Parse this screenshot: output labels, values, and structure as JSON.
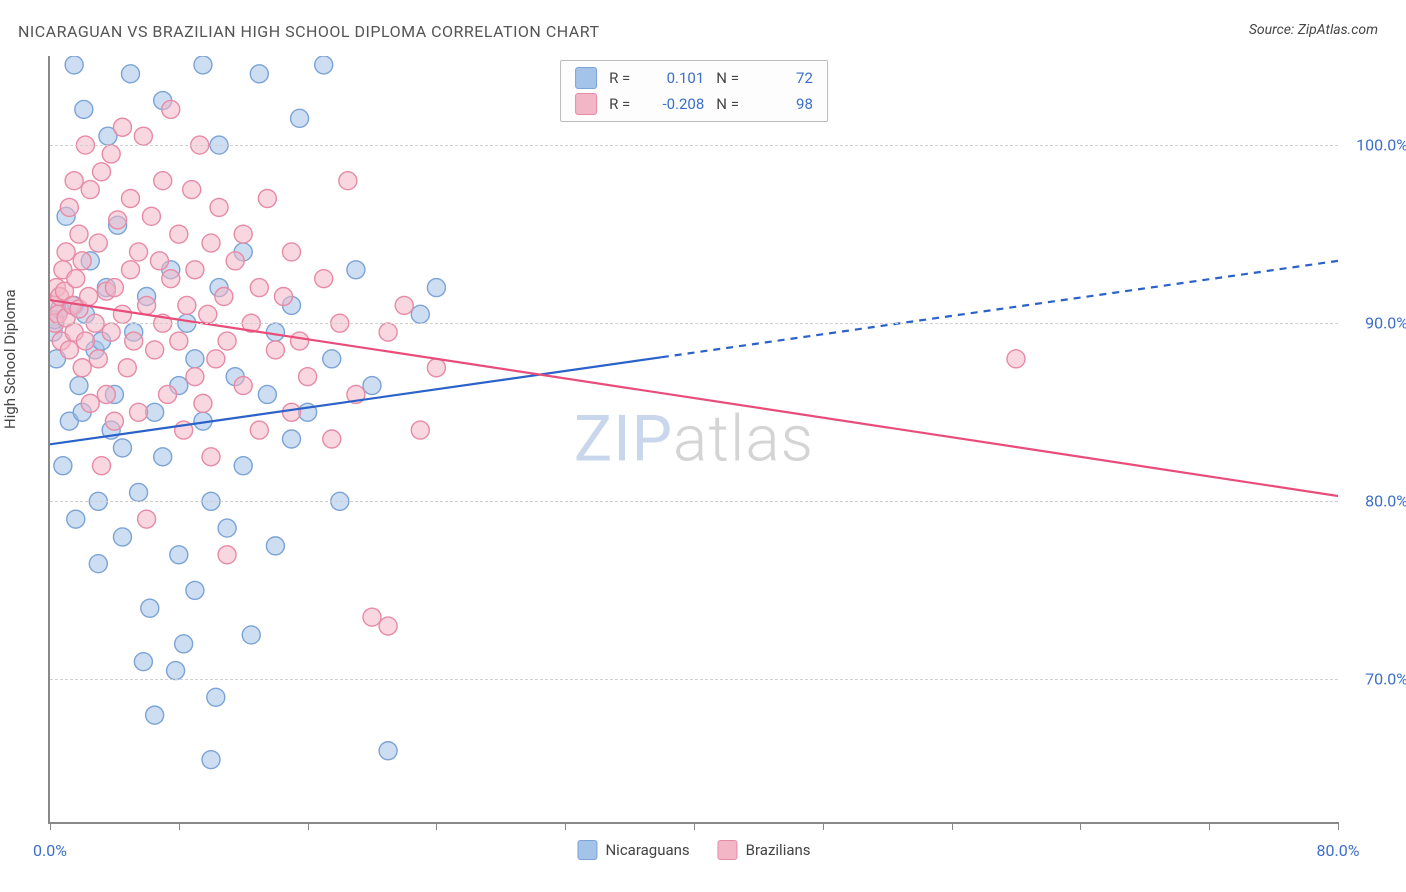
{
  "title": "NICARAGUAN VS BRAZILIAN HIGH SCHOOL DIPLOMA CORRELATION CHART",
  "source_label": "Source: ZipAtlas.com",
  "y_axis_label": "High School Diploma",
  "watermark": {
    "part1": "ZIP",
    "part2": "atlas"
  },
  "chart": {
    "type": "scatter",
    "xlim": [
      0,
      80
    ],
    "ylim": [
      62,
      105
    ],
    "x_ticks": [
      0,
      8,
      16,
      24,
      32,
      40,
      48,
      56,
      64,
      72,
      80
    ],
    "x_tick_labels": {
      "0": "0.0%",
      "80": "80.0%"
    },
    "y_gridlines": [
      70,
      80,
      90,
      100
    ],
    "y_tick_labels": {
      "70": "70.0%",
      "80": "80.0%",
      "90": "90.0%",
      "100": "100.0%"
    },
    "grid_color": "#d0d0d0",
    "axis_color": "#888888",
    "background_color": "#ffffff",
    "marker_radius": 9,
    "marker_stroke_width": 1.4,
    "series": [
      {
        "name": "Nicaraguans",
        "fill_color": "#a4c3e8",
        "stroke_color": "#7ba3d6",
        "fill_opacity": 0.55,
        "R": "0.101",
        "N": "72",
        "trend": {
          "x1": 0,
          "y1": 83.2,
          "x2": 80,
          "y2": 93.5,
          "solid_until_x": 38,
          "color": "#2a62c9",
          "width": 2.2
        },
        "points": [
          [
            0.2,
            89.5
          ],
          [
            0.3,
            90.2
          ],
          [
            0.4,
            88.0
          ],
          [
            0.6,
            90.8
          ],
          [
            0.8,
            82.0
          ],
          [
            1.0,
            96.0
          ],
          [
            1.2,
            84.5
          ],
          [
            1.5,
            104.5
          ],
          [
            1.5,
            91.0
          ],
          [
            1.6,
            79.0
          ],
          [
            1.8,
            86.5
          ],
          [
            2.0,
            85.0
          ],
          [
            2.1,
            102.0
          ],
          [
            2.2,
            90.5
          ],
          [
            2.5,
            93.5
          ],
          [
            2.8,
            88.5
          ],
          [
            3.0,
            80.0
          ],
          [
            3.0,
            76.5
          ],
          [
            3.2,
            89.0
          ],
          [
            3.5,
            92.0
          ],
          [
            3.6,
            100.5
          ],
          [
            3.8,
            84.0
          ],
          [
            4.0,
            86.0
          ],
          [
            4.2,
            95.5
          ],
          [
            4.5,
            83.0
          ],
          [
            4.5,
            78.0
          ],
          [
            5.0,
            104.0
          ],
          [
            5.2,
            89.5
          ],
          [
            5.5,
            80.5
          ],
          [
            5.8,
            71.0
          ],
          [
            6.0,
            91.5
          ],
          [
            6.2,
            74.0
          ],
          [
            6.5,
            85.0
          ],
          [
            6.5,
            68.0
          ],
          [
            7.0,
            102.5
          ],
          [
            7.0,
            82.5
          ],
          [
            7.5,
            93.0
          ],
          [
            7.8,
            70.5
          ],
          [
            8.0,
            86.5
          ],
          [
            8.0,
            77.0
          ],
          [
            8.3,
            72.0
          ],
          [
            8.5,
            90.0
          ],
          [
            9.0,
            88.0
          ],
          [
            9.0,
            75.0
          ],
          [
            9.5,
            84.5
          ],
          [
            9.5,
            104.5
          ],
          [
            10.0,
            80.0
          ],
          [
            10.0,
            65.5
          ],
          [
            10.3,
            69.0
          ],
          [
            10.5,
            92.0
          ],
          [
            10.5,
            100.0
          ],
          [
            11.0,
            78.5
          ],
          [
            11.5,
            87.0
          ],
          [
            12.0,
            82.0
          ],
          [
            12.0,
            94.0
          ],
          [
            12.5,
            72.5
          ],
          [
            13.0,
            104.0
          ],
          [
            13.5,
            86.0
          ],
          [
            14.0,
            89.5
          ],
          [
            14.0,
            77.5
          ],
          [
            15.0,
            91.0
          ],
          [
            15.0,
            83.5
          ],
          [
            15.5,
            101.5
          ],
          [
            16.0,
            85.0
          ],
          [
            17.0,
            104.5
          ],
          [
            17.5,
            88.0
          ],
          [
            18.0,
            80.0
          ],
          [
            19.0,
            93.0
          ],
          [
            20.0,
            86.5
          ],
          [
            21.0,
            66.0
          ],
          [
            23.0,
            90.5
          ],
          [
            24.0,
            92.0
          ]
        ]
      },
      {
        "name": "Brazilians",
        "fill_color": "#f2b6c6",
        "stroke_color": "#e78aa5",
        "fill_opacity": 0.55,
        "R": "-0.208",
        "N": "98",
        "trend": {
          "x1": 0,
          "y1": 91.3,
          "x2": 80,
          "y2": 80.3,
          "solid_until_x": 80,
          "color": "#e84d7a",
          "width": 2.2
        },
        "points": [
          [
            0.2,
            91.0
          ],
          [
            0.3,
            90.0
          ],
          [
            0.4,
            92.0
          ],
          [
            0.5,
            90.5
          ],
          [
            0.6,
            91.5
          ],
          [
            0.7,
            89.0
          ],
          [
            0.8,
            93.0
          ],
          [
            0.9,
            91.8
          ],
          [
            1.0,
            90.3
          ],
          [
            1.0,
            94.0
          ],
          [
            1.2,
            88.5
          ],
          [
            1.2,
            96.5
          ],
          [
            1.4,
            91.0
          ],
          [
            1.5,
            89.5
          ],
          [
            1.5,
            98.0
          ],
          [
            1.6,
            92.5
          ],
          [
            1.8,
            90.8
          ],
          [
            1.8,
            95.0
          ],
          [
            2.0,
            87.5
          ],
          [
            2.0,
            93.5
          ],
          [
            2.2,
            100.0
          ],
          [
            2.2,
            89.0
          ],
          [
            2.4,
            91.5
          ],
          [
            2.5,
            97.5
          ],
          [
            2.5,
            85.5
          ],
          [
            2.8,
            90.0
          ],
          [
            3.0,
            94.5
          ],
          [
            3.0,
            88.0
          ],
          [
            3.2,
            98.5
          ],
          [
            3.2,
            82.0
          ],
          [
            3.5,
            91.8
          ],
          [
            3.5,
            86.0
          ],
          [
            3.8,
            99.5
          ],
          [
            3.8,
            89.5
          ],
          [
            4.0,
            92.0
          ],
          [
            4.0,
            84.5
          ],
          [
            4.2,
            95.8
          ],
          [
            4.5,
            90.5
          ],
          [
            4.5,
            101.0
          ],
          [
            4.8,
            87.5
          ],
          [
            5.0,
            93.0
          ],
          [
            5.0,
            97.0
          ],
          [
            5.2,
            89.0
          ],
          [
            5.5,
            85.0
          ],
          [
            5.5,
            94.0
          ],
          [
            5.8,
            100.5
          ],
          [
            6.0,
            91.0
          ],
          [
            6.0,
            79.0
          ],
          [
            6.3,
            96.0
          ],
          [
            6.5,
            88.5
          ],
          [
            6.8,
            93.5
          ],
          [
            7.0,
            90.0
          ],
          [
            7.0,
            98.0
          ],
          [
            7.3,
            86.0
          ],
          [
            7.5,
            92.5
          ],
          [
            7.5,
            102.0
          ],
          [
            8.0,
            89.0
          ],
          [
            8.0,
            95.0
          ],
          [
            8.3,
            84.0
          ],
          [
            8.5,
            91.0
          ],
          [
            8.8,
            97.5
          ],
          [
            9.0,
            87.0
          ],
          [
            9.0,
            93.0
          ],
          [
            9.3,
            100.0
          ],
          [
            9.5,
            85.5
          ],
          [
            9.8,
            90.5
          ],
          [
            10.0,
            94.5
          ],
          [
            10.0,
            82.5
          ],
          [
            10.3,
            88.0
          ],
          [
            10.5,
            96.5
          ],
          [
            10.8,
            91.5
          ],
          [
            11.0,
            77.0
          ],
          [
            11.0,
            89.0
          ],
          [
            11.5,
            93.5
          ],
          [
            12.0,
            86.5
          ],
          [
            12.0,
            95.0
          ],
          [
            12.5,
            90.0
          ],
          [
            13.0,
            84.0
          ],
          [
            13.0,
            92.0
          ],
          [
            13.5,
            97.0
          ],
          [
            14.0,
            88.5
          ],
          [
            14.5,
            91.5
          ],
          [
            15.0,
            85.0
          ],
          [
            15.0,
            94.0
          ],
          [
            15.5,
            89.0
          ],
          [
            16.0,
            87.0
          ],
          [
            17.0,
            92.5
          ],
          [
            17.5,
            83.5
          ],
          [
            18.0,
            90.0
          ],
          [
            18.5,
            98.0
          ],
          [
            19.0,
            86.0
          ],
          [
            20.0,
            73.5
          ],
          [
            21.0,
            89.5
          ],
          [
            21.0,
            73.0
          ],
          [
            22.0,
            91.0
          ],
          [
            23.0,
            84.0
          ],
          [
            24.0,
            87.5
          ],
          [
            60.0,
            88.0
          ]
        ]
      }
    ]
  },
  "legend_top": {
    "R_label": "R =",
    "N_label": "N ="
  },
  "legend_bottom": {
    "items": [
      {
        "label": "Nicaraguans",
        "fill": "#a4c3e8",
        "stroke": "#7ba3d6"
      },
      {
        "label": "Brazilians",
        "fill": "#f2b6c6",
        "stroke": "#e78aa5"
      }
    ]
  }
}
